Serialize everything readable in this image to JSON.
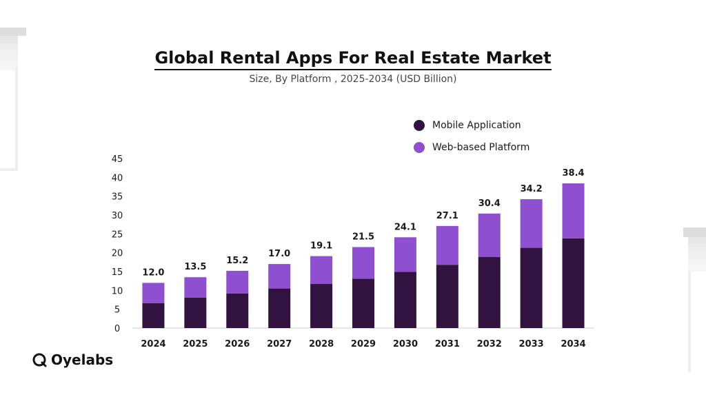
{
  "header": {
    "title": "Global Rental Apps For Real Estate Market",
    "subtitle": "Size, By Platform , 2025-2034 (USD Billion)"
  },
  "brand": {
    "name": "Oyelabs"
  },
  "colors": {
    "mobile": "#32123f",
    "web": "#8e4fd1",
    "axis": "#cccccc",
    "text": "#1a1a1a"
  },
  "chart_data": {
    "type": "bar",
    "stacked": true,
    "categories": [
      "2024",
      "2025",
      "2026",
      "2027",
      "2028",
      "2029",
      "2030",
      "2031",
      "2032",
      "2033",
      "2034"
    ],
    "series": [
      {
        "name": "Mobile Application",
        "values": [
          6.6,
          8.1,
          9.2,
          10.5,
          11.7,
          13.1,
          14.9,
          16.8,
          18.9,
          21.3,
          23.8
        ]
      },
      {
        "name": "Web-based Platform",
        "values": [
          5.4,
          5.4,
          6.0,
          6.5,
          7.4,
          8.4,
          9.2,
          10.3,
          11.5,
          12.9,
          14.6
        ]
      }
    ],
    "totals": [
      "12.0",
      "13.5",
      "15.2",
      "17.0",
      "19.1",
      "21.5",
      "24.1",
      "27.1",
      "30.4",
      "34.2",
      "38.4"
    ],
    "yticks": [
      0,
      5,
      10,
      15,
      20,
      25,
      30,
      35,
      40,
      45
    ],
    "ylim": [
      0,
      45
    ],
    "legend_position": "top-right",
    "grid": false
  }
}
